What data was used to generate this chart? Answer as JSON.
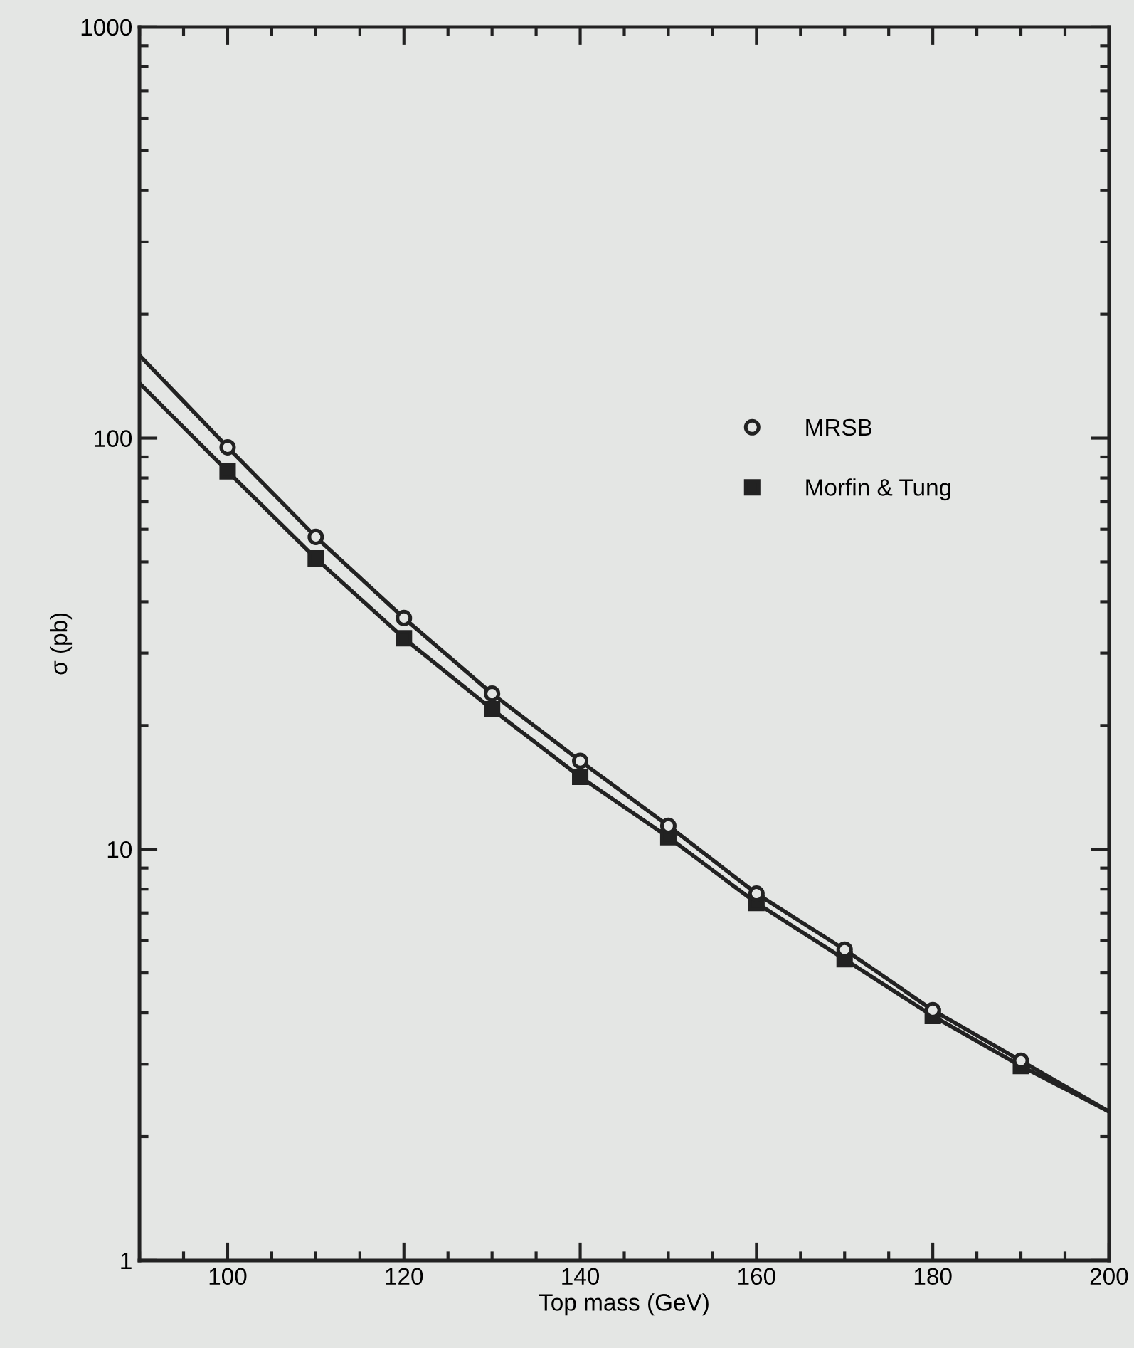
{
  "chart_data": {
    "type": "line",
    "xlabel": "Top mass (GeV)",
    "ylabel": "σ (pb)",
    "log": "y",
    "xlim": [
      90,
      200
    ],
    "xticks": [
      100,
      120,
      140,
      160,
      180,
      200
    ],
    "ylim": [
      1,
      1000
    ],
    "yticks": [
      1,
      10,
      100,
      1000
    ],
    "grid": false,
    "legend": "top right",
    "series": [
      {
        "color": "#222222",
        "marker": "none",
        "x": [
          90,
          100,
          110,
          120,
          130,
          140,
          150,
          160,
          170,
          180,
          190,
          200
        ],
        "values": [
          159,
          95,
          57.5,
          36.5,
          23.9,
          16.4,
          11.4,
          7.8,
          5.7,
          4.06,
          3.06,
          2.3
        ]
      },
      {
        "color": "#222222",
        "marker": "none",
        "x": [
          90,
          100,
          110,
          120,
          130,
          140,
          150,
          160,
          170,
          180,
          190,
          200
        ],
        "values": [
          136,
          83,
          51,
          32.6,
          21.9,
          15.0,
          10.7,
          7.4,
          5.4,
          3.93,
          2.97,
          2.3
        ]
      },
      {
        "type": "scatter",
        "name": "MRSB",
        "color": "#222222",
        "marker": "circle",
        "x": [
          100,
          110,
          120,
          130,
          140,
          150,
          160,
          170,
          180,
          190
        ],
        "values": [
          95,
          57.5,
          36.5,
          23.9,
          16.4,
          11.4,
          7.8,
          5.7,
          4.06,
          3.06
        ]
      },
      {
        "type": "scatter",
        "name": "Morfin & Tung",
        "color": "#222222",
        "marker": "square",
        "x": [
          100,
          110,
          120,
          130,
          140,
          150,
          160,
          170,
          180,
          190
        ],
        "values": [
          83,
          51,
          32.6,
          21.9,
          15.0,
          10.7,
          7.4,
          5.4,
          3.93,
          2.97
        ]
      }
    ]
  }
}
